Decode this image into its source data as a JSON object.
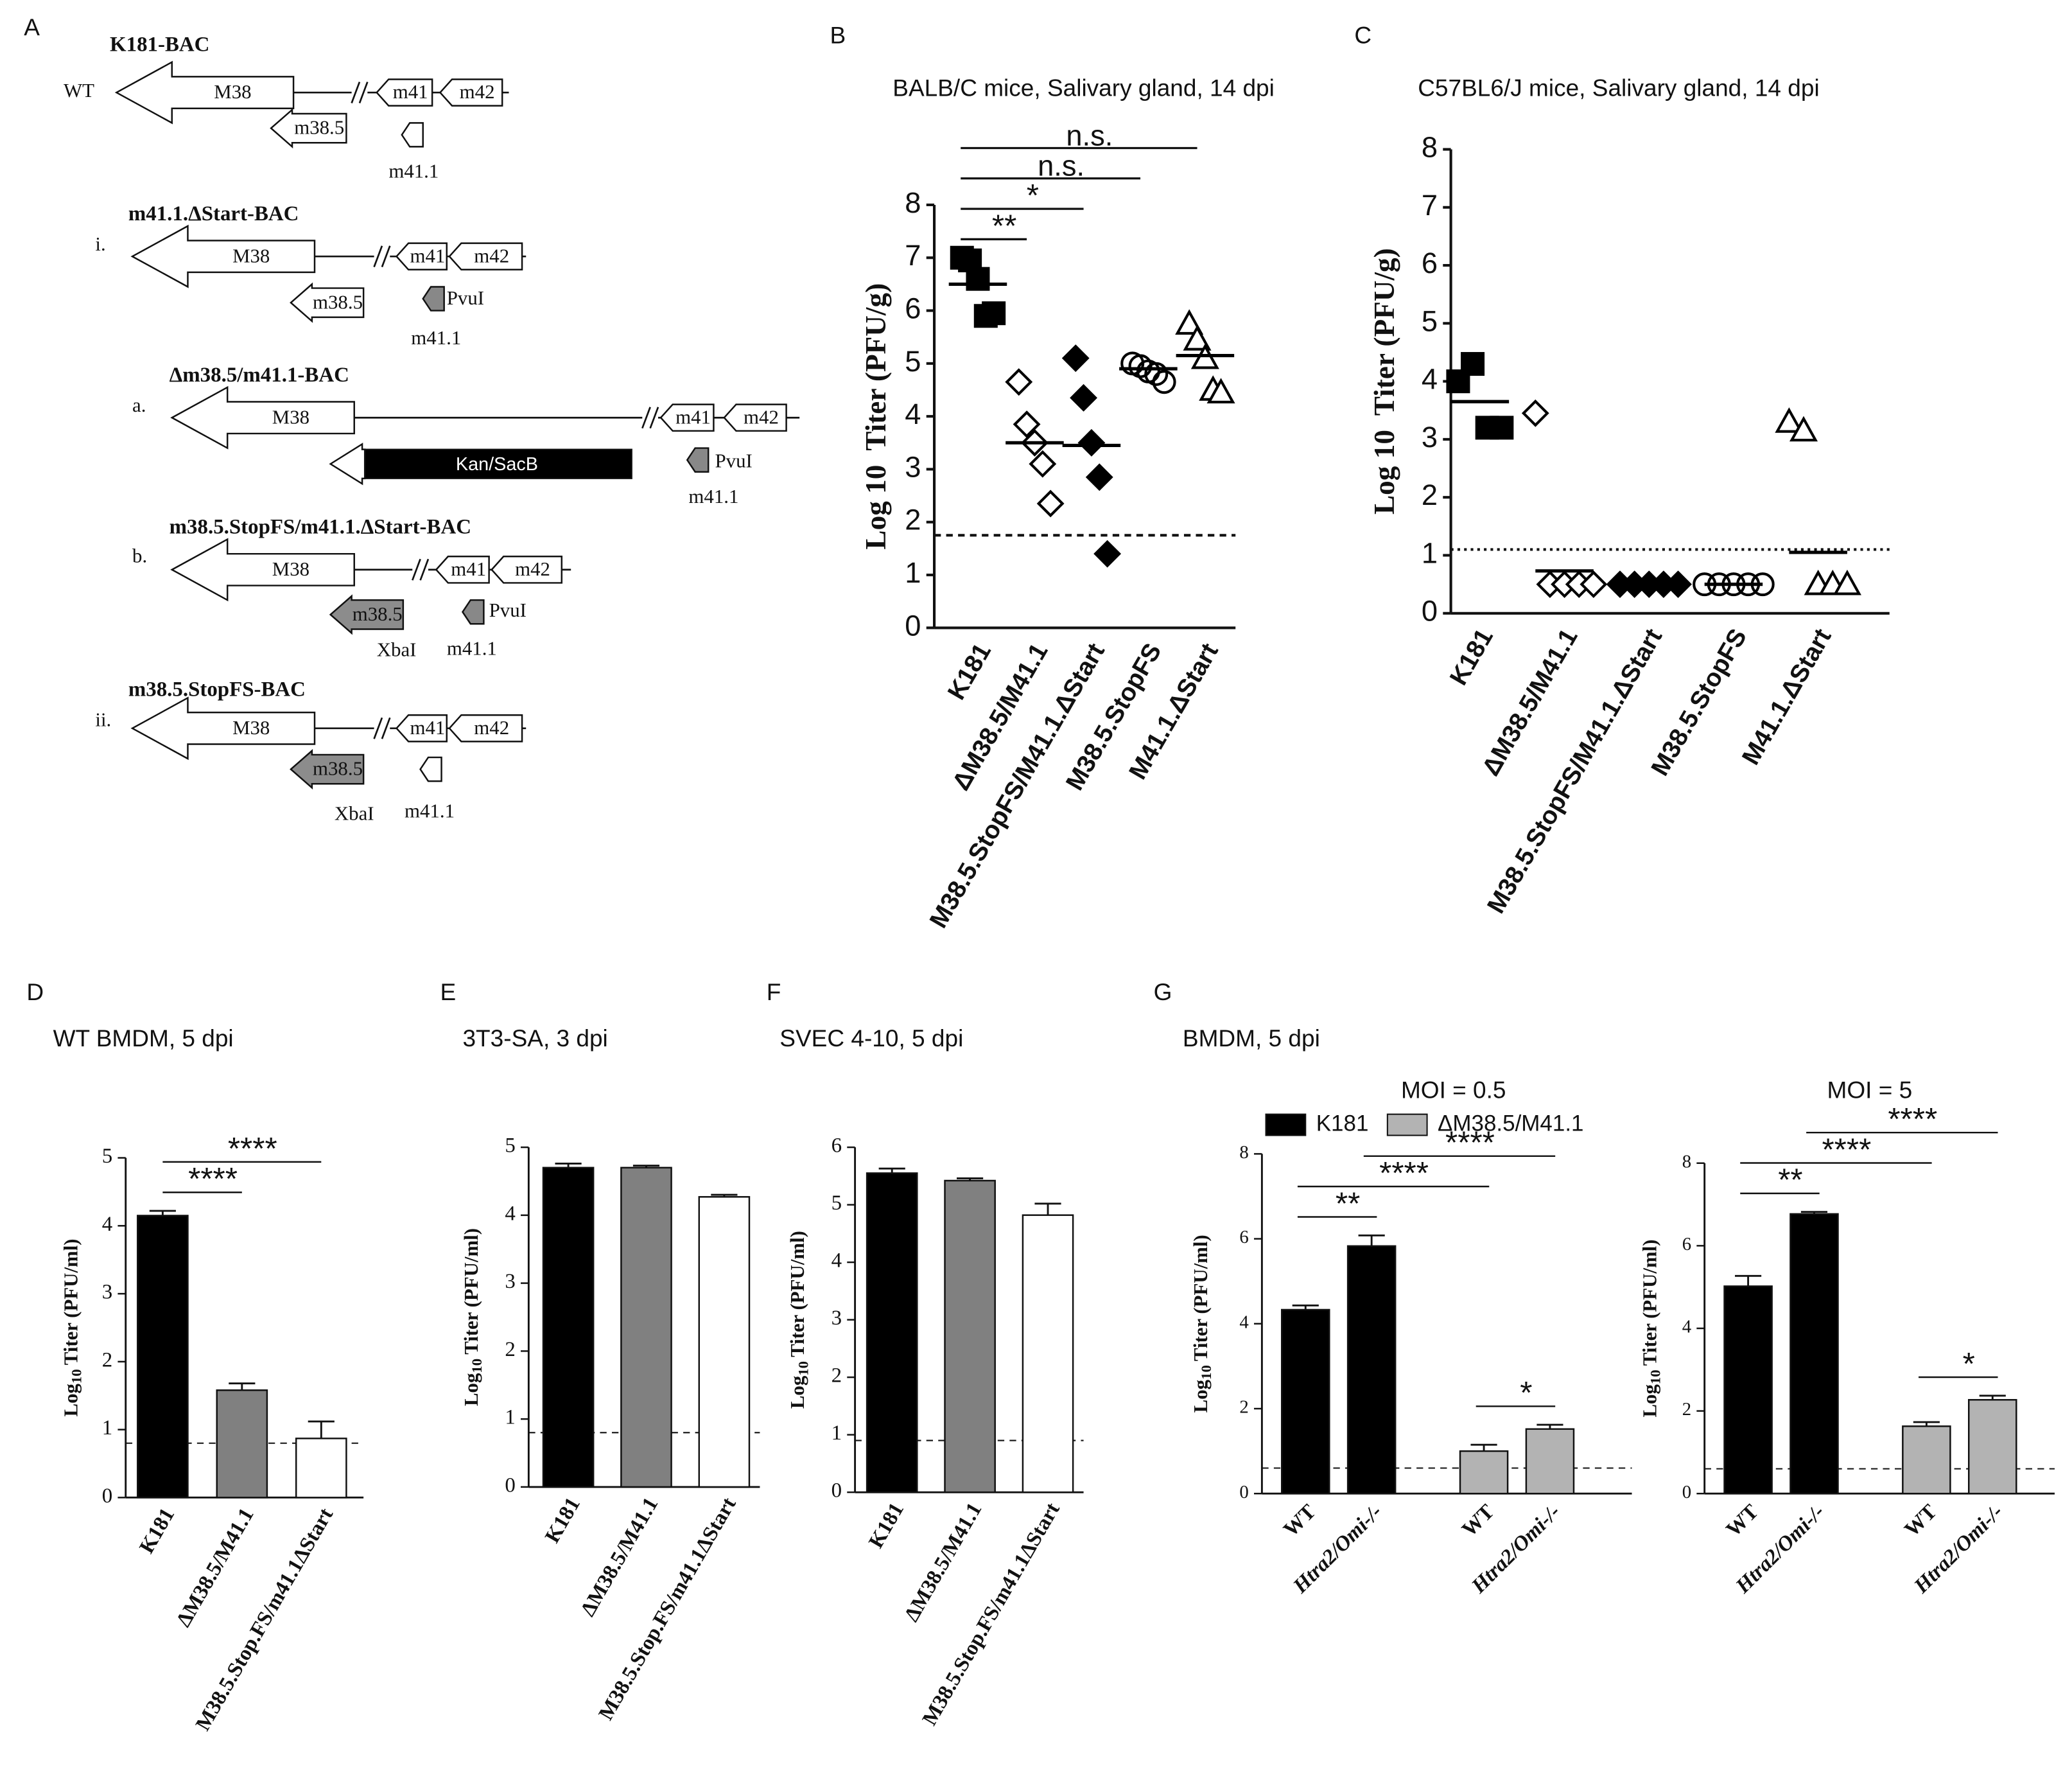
{
  "diagram": {
    "panel": "A",
    "constructs": [
      {
        "name": "K181-BAC",
        "tag": "WT",
        "parts": [
          "M38",
          "m38.5",
          "m41",
          "m41.1",
          "m42"
        ]
      },
      {
        "name": "m41.1.ΔStart-BAC",
        "tag": "i.",
        "parts": [
          "M38",
          "m38.5",
          "m41",
          "m41.1",
          "m42",
          "PvuI"
        ]
      },
      {
        "name": "Δm38.5/m41.1-BAC",
        "tag": "a.",
        "parts": [
          "M38",
          "Kan/SacB",
          "m41",
          "m41.1",
          "m42",
          "PvuI"
        ]
      },
      {
        "name": "m38.5.StopFS/m41.1.ΔStart-BAC",
        "tag": "b.",
        "parts": [
          "M38",
          "m38.5",
          "m41",
          "m41.1",
          "m42",
          "PvuI",
          "XbaI"
        ]
      },
      {
        "name": "m38.5.StopFS-BAC",
        "tag": "ii.",
        "parts": [
          "M38",
          "m38.5",
          "m41",
          "m41.1",
          "m42",
          "XbaI"
        ]
      }
    ]
  },
  "chart_data": [
    {
      "panel": "B",
      "type": "dot",
      "title": "BALB/C mice, Salivary gland, 14 dpi",
      "ylabel": "Log 10  Titer (PFU/g)",
      "categories": [
        "K181",
        "ΔM38.5/M41.1",
        "M38.5.StopFS/M41.1.ΔStart",
        "M38.5.StopFS",
        "M41.1.ΔStart"
      ],
      "values": [
        [
          7.0,
          6.95,
          6.6,
          5.9,
          5.95
        ],
        [
          4.65,
          3.85,
          3.5,
          3.1,
          2.35
        ],
        [
          5.1,
          4.35,
          3.5,
          2.85,
          1.4
        ],
        [
          5.0,
          4.95,
          4.85,
          4.8,
          4.65
        ],
        [
          5.75,
          5.45,
          5.1,
          4.5,
          4.45
        ]
      ],
      "means": [
        6.5,
        3.5,
        3.45,
        4.9,
        5.15
      ],
      "markers": [
        "square",
        "diamond-open",
        "diamond",
        "circle-open",
        "triangle-open"
      ],
      "threshold": 1.75,
      "threshold_style": "dashed",
      "ylim": [
        0,
        8
      ],
      "yticks": [
        0,
        1,
        2,
        3,
        4,
        5,
        6,
        7,
        8
      ],
      "comparisons": [
        {
          "from": 0,
          "to": 1,
          "label": "**"
        },
        {
          "from": 0,
          "to": 2,
          "label": "*"
        },
        {
          "from": 0,
          "to": 3,
          "label": "n.s."
        },
        {
          "from": 0,
          "to": 4,
          "label": "n.s."
        }
      ]
    },
    {
      "panel": "C",
      "type": "dot",
      "title": "C57BL6/J mice, Salivary gland, 14 dpi",
      "ylabel": "Log 10  Titer (PFU/g)",
      "categories": [
        "K181",
        "ΔM38.5/M41.1",
        "M38.5.StopFS/M41.1.ΔStart",
        "M38.5.StopFS",
        "M41.1.ΔStart"
      ],
      "values": [
        [
          4.0,
          4.3,
          3.2,
          3.2
        ],
        [
          3.45,
          0.5,
          0.5,
          0.5,
          0.5
        ],
        [
          0.5,
          0.5,
          0.5,
          0.5,
          0.5
        ],
        [
          0.5,
          0.5,
          0.5,
          0.5,
          0.5
        ],
        [
          3.3,
          3.15,
          0.5,
          0.5,
          0.5
        ]
      ],
      "means": [
        3.65,
        0.73,
        0.5,
        0.5,
        1.05
      ],
      "markers": [
        "square",
        "diamond-open",
        "diamond",
        "circle-open",
        "triangle-open"
      ],
      "threshold": 1.1,
      "threshold_style": "dotted",
      "ylim": [
        0,
        8
      ],
      "yticks": [
        0,
        1,
        2,
        3,
        4,
        5,
        6,
        7,
        8
      ]
    },
    {
      "panel": "D",
      "type": "bar",
      "title": "WT BMDM, 5 dpi",
      "ylabel": [
        "Log",
        "10",
        "Titer (PFU/ml)"
      ],
      "categories": [
        "K181",
        "ΔM38.5/M41.1",
        "M38.5.Stop.FS/m41.1ΔStart"
      ],
      "values": [
        4.15,
        1.58,
        0.87
      ],
      "errors": [
        0.07,
        0.1,
        0.25
      ],
      "colors": [
        "#000000",
        "#808080",
        "#ffffff"
      ],
      "threshold": 0.8,
      "threshold_style": "dashed",
      "ylim": [
        0,
        5
      ],
      "yticks": [
        0,
        1,
        2,
        3,
        4,
        5
      ],
      "comparisons": [
        {
          "from": 0,
          "to": 1,
          "label": "****"
        },
        {
          "from": 0,
          "to": 2,
          "label": "****"
        }
      ]
    },
    {
      "panel": "E",
      "type": "bar",
      "title": "3T3-SA, 3 dpi",
      "ylabel": [
        "Log",
        "10",
        "Titer (PFU/ml)"
      ],
      "categories": [
        "K181",
        "ΔM38.5/M41.1",
        "M38.5.Stop.FS/m41.1ΔStart"
      ],
      "values": [
        4.7,
        4.7,
        4.27
      ],
      "errors": [
        0.06,
        0.03,
        0.03
      ],
      "colors": [
        "#000000",
        "#808080",
        "#ffffff"
      ],
      "threshold": 0.8,
      "threshold_style": "dashed",
      "ylim": [
        0,
        5
      ],
      "yticks": [
        0,
        1,
        2,
        3,
        4,
        5
      ]
    },
    {
      "panel": "F",
      "type": "bar",
      "title": "SVEC 4-10, 5 dpi",
      "ylabel": [
        "Log",
        "10",
        "Titer (PFU/ml)"
      ],
      "categories": [
        "K181",
        "ΔM38.5/M41.1",
        "M38.5.Stop.FS/m41.1ΔStart"
      ],
      "values": [
        5.55,
        5.42,
        4.82
      ],
      "errors": [
        0.08,
        0.04,
        0.2
      ],
      "colors": [
        "#000000",
        "#808080",
        "#ffffff"
      ],
      "threshold": 0.9,
      "threshold_style": "dashed",
      "ylim": [
        0,
        6
      ],
      "yticks": [
        0,
        1,
        2,
        3,
        4,
        5,
        6
      ]
    },
    {
      "panel": "G",
      "type": "grouped_bar",
      "title": "BMDM, 5 dpi",
      "subtitle": "MOI = 0.5",
      "ylabel": [
        "Log",
        "10",
        "Titer (PFU/ml)"
      ],
      "categories": [
        "WT",
        "Htra2/Omi-/-"
      ],
      "series": [
        {
          "name": "K181",
          "color": "#000000",
          "values": [
            4.33,
            5.83
          ],
          "errors": [
            0.1,
            0.25
          ]
        },
        {
          "name": "ΔM38.5/M41.1",
          "color": "#b3b3b3",
          "values": [
            1.0,
            1.52
          ],
          "errors": [
            0.15,
            0.1
          ]
        }
      ],
      "threshold": 0.6,
      "threshold_style": "dashed",
      "ylim": [
        0,
        8
      ],
      "yticks": [
        0,
        2,
        4,
        6,
        8
      ],
      "comparisons": [
        {
          "from": 0,
          "to": 1,
          "label": "**"
        },
        {
          "from": 0,
          "to": 2,
          "label": "****"
        },
        {
          "from": 1,
          "to": 3,
          "label": "****"
        },
        {
          "from": 2,
          "to": 3,
          "label": "*"
        }
      ]
    },
    {
      "type": "grouped_bar",
      "subtitle": "MOI = 5",
      "ylabel": [
        "Log",
        "10",
        "Titer (PFU/ml)"
      ],
      "categories": [
        "WT",
        "Htra2/Omi-/-"
      ],
      "series": [
        {
          "color": "#000000",
          "values": [
            5.02,
            6.77
          ],
          "errors": [
            0.25,
            0.05
          ]
        },
        {
          "color": "#b3b3b3",
          "values": [
            1.63,
            2.27
          ],
          "errors": [
            0.1,
            0.1
          ]
        }
      ],
      "threshold": 0.6,
      "threshold_style": "dashed",
      "ylim": [
        0,
        8
      ],
      "yticks": [
        0,
        2,
        4,
        6,
        8
      ],
      "comparisons": [
        {
          "from": 0,
          "to": 1,
          "label": "**"
        },
        {
          "from": 0,
          "to": 2,
          "label": "****"
        },
        {
          "from": 1,
          "to": 3,
          "label": "****"
        },
        {
          "from": 2,
          "to": 3,
          "label": "*"
        }
      ]
    }
  ]
}
